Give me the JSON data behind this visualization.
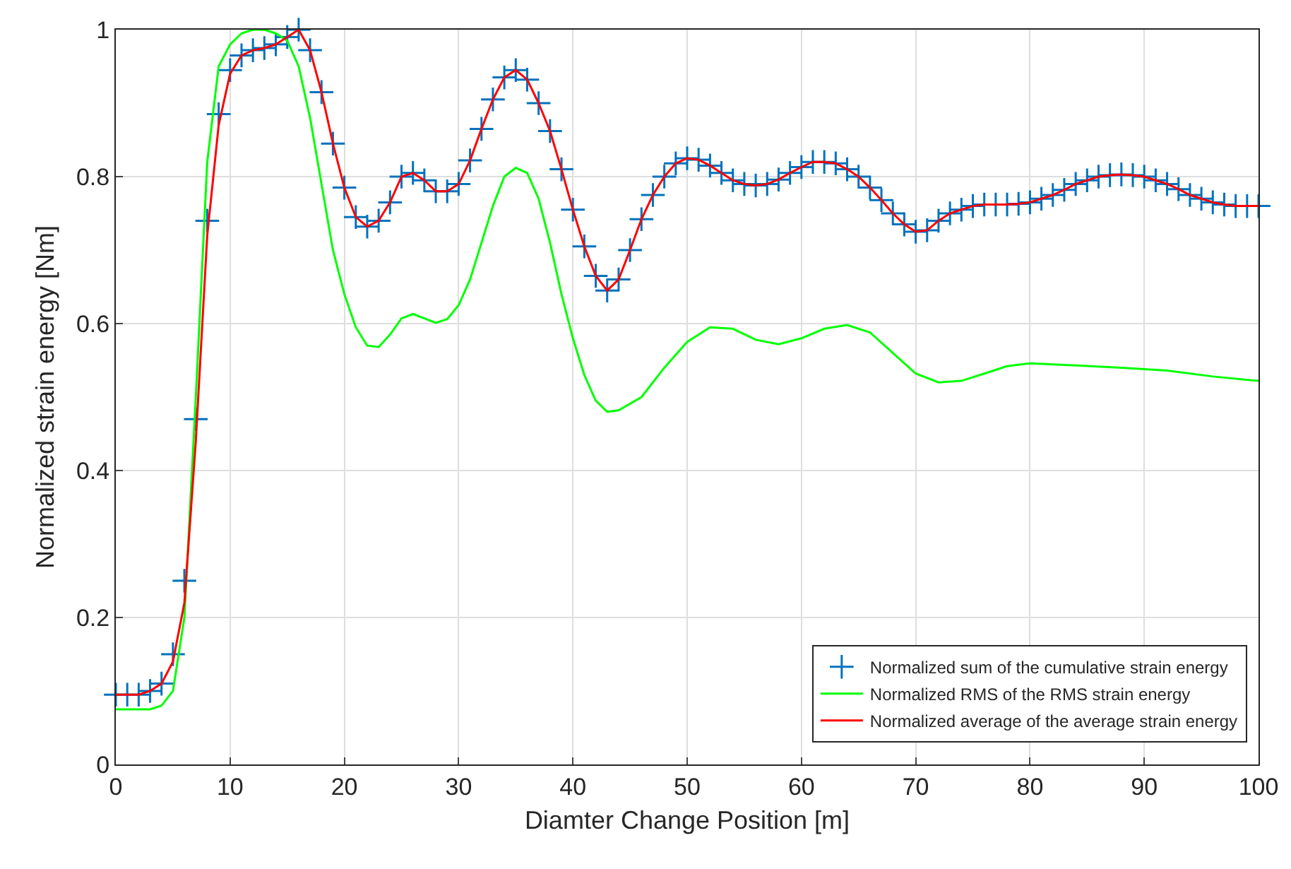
{
  "chart_data": {
    "type": "line",
    "xlabel": "Diamter Change Position [m]",
    "ylabel": "Normalized strain energy [Nm]",
    "xlim": [
      0,
      100
    ],
    "ylim": [
      0,
      1
    ],
    "xticks": [
      0,
      10,
      20,
      30,
      40,
      50,
      60,
      70,
      80,
      90,
      100
    ],
    "yticks": [
      0,
      0.2,
      0.4,
      0.6,
      0.8,
      1
    ],
    "grid": true,
    "legend": "bottom right",
    "series": [
      {
        "name": "Normalized sum of the cumulative strain energy",
        "type": "scatter",
        "marker": "cross",
        "color": "#0072bd",
        "x": [
          0,
          1,
          2,
          3,
          4,
          5,
          6,
          7,
          8,
          9,
          10,
          11,
          12,
          13,
          14,
          15,
          16,
          17,
          18,
          19,
          20,
          21,
          22,
          23,
          24,
          25,
          26,
          27,
          28,
          29,
          30,
          31,
          32,
          33,
          34,
          35,
          36,
          37,
          38,
          39,
          40,
          41,
          42,
          43,
          44,
          45,
          46,
          47,
          48,
          49,
          50,
          51,
          52,
          53,
          54,
          55,
          56,
          57,
          58,
          59,
          60,
          61,
          62,
          63,
          64,
          65,
          66,
          67,
          68,
          69,
          70,
          71,
          72,
          73,
          74,
          75,
          76,
          77,
          78,
          79,
          80,
          81,
          82,
          83,
          84,
          85,
          86,
          87,
          88,
          89,
          90,
          91,
          92,
          93,
          94,
          95,
          96,
          97,
          98,
          99,
          100
        ],
        "values": [
          0.095,
          0.095,
          0.095,
          0.1,
          0.11,
          0.15,
          0.25,
          0.47,
          0.74,
          0.885,
          0.945,
          0.965,
          0.972,
          0.975,
          0.98,
          0.99,
          1.0,
          0.972,
          0.915,
          0.845,
          0.785,
          0.745,
          0.732,
          0.74,
          0.765,
          0.8,
          0.805,
          0.795,
          0.78,
          0.78,
          0.79,
          0.822,
          0.865,
          0.905,
          0.935,
          0.945,
          0.932,
          0.9,
          0.862,
          0.81,
          0.755,
          0.705,
          0.665,
          0.645,
          0.66,
          0.7,
          0.742,
          0.775,
          0.8,
          0.818,
          0.825,
          0.823,
          0.815,
          0.805,
          0.795,
          0.79,
          0.788,
          0.79,
          0.796,
          0.805,
          0.813,
          0.82,
          0.82,
          0.818,
          0.81,
          0.8,
          0.785,
          0.768,
          0.75,
          0.735,
          0.725,
          0.727,
          0.74,
          0.75,
          0.755,
          0.76,
          0.762,
          0.762,
          0.762,
          0.763,
          0.765,
          0.77,
          0.775,
          0.782,
          0.79,
          0.795,
          0.8,
          0.802,
          0.803,
          0.802,
          0.8,
          0.795,
          0.79,
          0.783,
          0.775,
          0.77,
          0.765,
          0.762,
          0.76,
          0.76,
          0.76
        ]
      },
      {
        "name": "Normalized RMS of the RMS strain energy",
        "type": "line",
        "marker": "none",
        "color": "#00ff00",
        "x": [
          0,
          3,
          4,
          5,
          6,
          7,
          8,
          9,
          10,
          11,
          12,
          13,
          14,
          15,
          16,
          17,
          18,
          19,
          20,
          21,
          22,
          23,
          24,
          25,
          26,
          27,
          28,
          29,
          30,
          31,
          32,
          33,
          34,
          35,
          36,
          37,
          38,
          39,
          40,
          41,
          42,
          43,
          44,
          46,
          48,
          50,
          52,
          54,
          56,
          58,
          60,
          62,
          64,
          66,
          68,
          70,
          72,
          74,
          76,
          78,
          80,
          84,
          88,
          92,
          96,
          100
        ],
        "values": [
          0.075,
          0.075,
          0.08,
          0.1,
          0.2,
          0.5,
          0.82,
          0.95,
          0.98,
          0.995,
          1.0,
          1.0,
          0.995,
          0.985,
          0.95,
          0.88,
          0.79,
          0.7,
          0.64,
          0.595,
          0.57,
          0.568,
          0.585,
          0.607,
          0.613,
          0.607,
          0.601,
          0.606,
          0.625,
          0.66,
          0.71,
          0.76,
          0.8,
          0.812,
          0.805,
          0.77,
          0.71,
          0.64,
          0.58,
          0.53,
          0.495,
          0.48,
          0.482,
          0.5,
          0.54,
          0.575,
          0.595,
          0.593,
          0.578,
          0.572,
          0.58,
          0.593,
          0.598,
          0.588,
          0.56,
          0.532,
          0.52,
          0.522,
          0.532,
          0.542,
          0.546,
          0.543,
          0.54,
          0.536,
          0.528,
          0.522
        ]
      },
      {
        "name": "Normalized average of the average strain energy",
        "type": "line",
        "marker": "none",
        "color": "#ff0000",
        "x": [
          0,
          1,
          2,
          3,
          4,
          5,
          6,
          7,
          8,
          9,
          10,
          11,
          12,
          13,
          14,
          15,
          16,
          17,
          18,
          19,
          20,
          21,
          22,
          23,
          24,
          25,
          26,
          27,
          28,
          29,
          30,
          31,
          32,
          33,
          34,
          35,
          36,
          37,
          38,
          39,
          40,
          41,
          42,
          43,
          44,
          45,
          46,
          47,
          48,
          49,
          50,
          51,
          52,
          53,
          54,
          55,
          56,
          57,
          58,
          59,
          60,
          61,
          62,
          63,
          64,
          65,
          66,
          67,
          68,
          69,
          70,
          71,
          72,
          73,
          74,
          75,
          76,
          77,
          78,
          79,
          80,
          81,
          82,
          83,
          84,
          85,
          86,
          87,
          88,
          89,
          90,
          91,
          92,
          93,
          94,
          95,
          96,
          97,
          98,
          99,
          100
        ],
        "values": [
          0.095,
          0.095,
          0.095,
          0.1,
          0.11,
          0.14,
          0.22,
          0.44,
          0.72,
          0.87,
          0.94,
          0.965,
          0.972,
          0.975,
          0.98,
          0.99,
          1.0,
          0.972,
          0.915,
          0.845,
          0.785,
          0.745,
          0.732,
          0.74,
          0.765,
          0.8,
          0.805,
          0.795,
          0.78,
          0.78,
          0.79,
          0.822,
          0.865,
          0.905,
          0.935,
          0.945,
          0.932,
          0.9,
          0.862,
          0.81,
          0.755,
          0.705,
          0.665,
          0.645,
          0.66,
          0.7,
          0.742,
          0.775,
          0.8,
          0.818,
          0.825,
          0.823,
          0.815,
          0.805,
          0.795,
          0.79,
          0.788,
          0.79,
          0.796,
          0.805,
          0.813,
          0.82,
          0.82,
          0.818,
          0.81,
          0.8,
          0.785,
          0.768,
          0.75,
          0.735,
          0.725,
          0.727,
          0.74,
          0.75,
          0.755,
          0.76,
          0.762,
          0.762,
          0.762,
          0.763,
          0.765,
          0.77,
          0.775,
          0.782,
          0.79,
          0.795,
          0.8,
          0.802,
          0.803,
          0.802,
          0.8,
          0.795,
          0.79,
          0.783,
          0.775,
          0.77,
          0.765,
          0.762,
          0.76,
          0.76,
          0.76
        ]
      }
    ]
  }
}
